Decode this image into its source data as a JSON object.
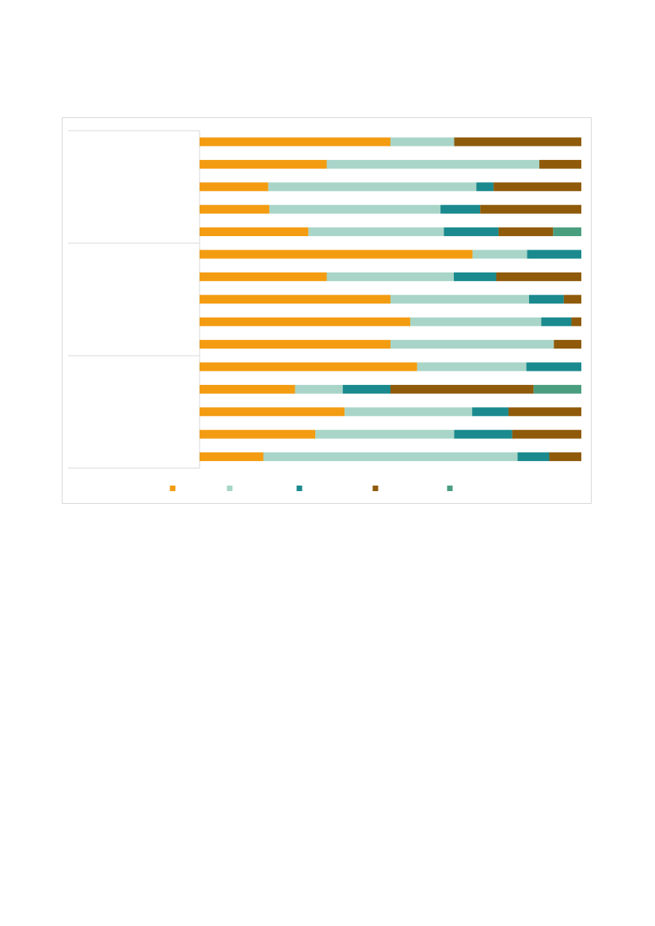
{
  "chart_data": {
    "type": "bar",
    "orientation": "horizontal",
    "stacked": true,
    "percent_stacked": true,
    "xlim": [
      0,
      100
    ],
    "grid": false,
    "legend_position": "bottom",
    "group_count": 3,
    "rows_per_group": 5,
    "series": [
      {
        "color": "#f39c12",
        "values": [
          50,
          33.3,
          18,
          18.3,
          28.5,
          71.5,
          33.3,
          50,
          55.2,
          50,
          57,
          25,
          38,
          30.3,
          16.7
        ]
      },
      {
        "color": "#a8d5c8",
        "values": [
          16.7,
          55.7,
          54.5,
          44.8,
          35.5,
          14.3,
          33.3,
          36.3,
          34.3,
          42.8,
          28.6,
          12.5,
          33.4,
          36.4,
          66.6
        ]
      },
      {
        "color": "#1a8a8e",
        "values": [
          0,
          0,
          4.5,
          10.4,
          14.3,
          14.2,
          11.1,
          9.1,
          7.9,
          0,
          14.4,
          12.5,
          9.5,
          15.2,
          8.3
        ]
      },
      {
        "color": "#8f5a0a",
        "values": [
          33.3,
          11,
          23,
          26.5,
          14.3,
          0,
          22.3,
          4.6,
          2.6,
          7.2,
          0,
          37.5,
          19.1,
          18.1,
          8.4
        ]
      },
      {
        "color": "#4a9e80",
        "values": [
          0,
          0,
          0,
          0,
          7.4,
          0,
          0,
          0,
          0,
          0,
          0,
          12.5,
          0,
          0,
          0
        ]
      }
    ]
  }
}
